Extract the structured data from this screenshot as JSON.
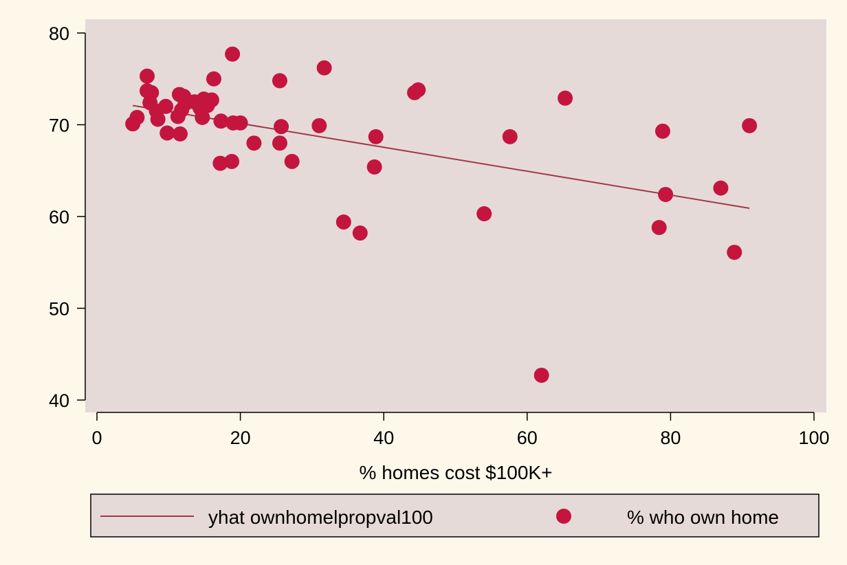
{
  "chart_data": {
    "type": "scatter",
    "title": "",
    "xlabel": "% homes cost $100K+",
    "ylabel": "",
    "xlim": [
      0,
      100
    ],
    "ylim": [
      40,
      80
    ],
    "x_ticks": [
      "0",
      "20",
      "40",
      "60",
      "80",
      "100"
    ],
    "y_ticks": [
      "40",
      "50",
      "60",
      "70",
      "80"
    ],
    "grid": false,
    "legend_position": "bottom",
    "colors": {
      "page_background": "#fdf8ea",
      "plot_background": "#e6dad8",
      "marker": "#c4153f",
      "fit_line": "#9b3a48"
    },
    "series": [
      {
        "name": "yhat ownhomelpropval100",
        "kind": "line",
        "x": [
          5.0,
          91.0
        ],
        "y": [
          72.1,
          60.9
        ]
      },
      {
        "name": "% who own home",
        "kind": "scatter",
        "x": [
          5.0,
          5.6,
          7.0,
          7.0,
          7.4,
          7.6,
          8.3,
          8.5,
          9.6,
          9.8,
          11.3,
          11.5,
          11.6,
          11.8,
          12.1,
          12.3,
          13.6,
          14.4,
          14.7,
          14.9,
          15.4,
          16.0,
          16.3,
          17.2,
          17.3,
          18.8,
          18.9,
          19.0,
          20.0,
          21.9,
          25.5,
          25.5,
          25.7,
          27.2,
          31.0,
          31.7,
          34.4,
          36.7,
          38.7,
          38.9,
          44.3,
          44.8,
          54.0,
          57.6,
          62.0,
          65.3,
          78.4,
          78.9,
          79.3,
          87.0,
          88.9,
          91.0
        ],
        "y": [
          70.1,
          70.8,
          75.3,
          73.7,
          72.4,
          73.5,
          71.5,
          70.6,
          72.0,
          69.1,
          70.9,
          73.3,
          69.0,
          71.6,
          73.1,
          72.3,
          72.5,
          71.8,
          70.8,
          72.8,
          72.1,
          72.7,
          75.0,
          65.8,
          70.4,
          66.0,
          77.7,
          70.2,
          70.2,
          68.0,
          68.0,
          74.8,
          69.8,
          66.0,
          69.9,
          76.2,
          59.4,
          58.2,
          65.4,
          68.7,
          73.5,
          73.8,
          60.3,
          68.7,
          42.7,
          72.9,
          58.8,
          69.3,
          62.4,
          63.1,
          56.1,
          69.9
        ]
      }
    ]
  }
}
